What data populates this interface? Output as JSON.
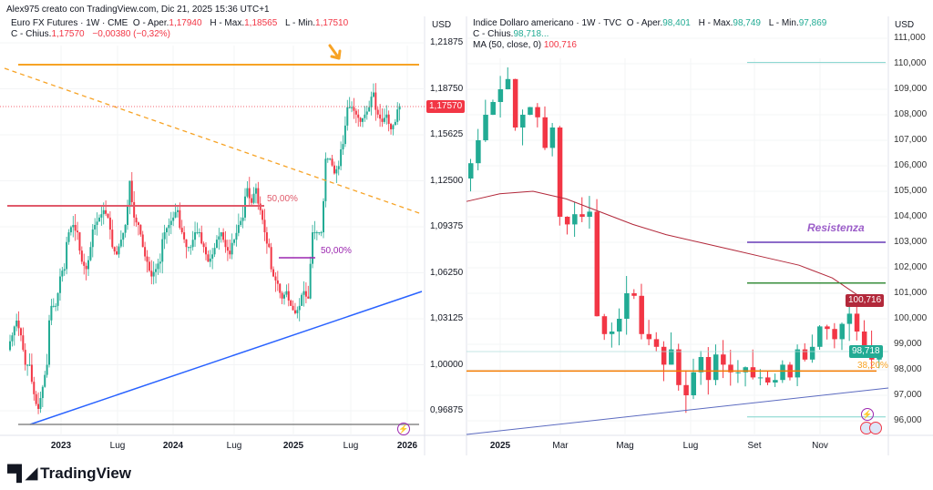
{
  "credit": "Alex975 creato con TradingView.com, Dic 21, 2025 15:36 UTC+1",
  "left": {
    "symbol": "Euro FX Futures · 1W · CME",
    "open_label": "O - Aper.",
    "open": "1,17940",
    "high_label": "H - Max.",
    "high": "1,18565",
    "low_label": "L - Min.",
    "low": "1,17510",
    "close_label": "C - Chius.",
    "close": "1,17570",
    "change": "−0,00380 (−0,32%)",
    "currency": "USD",
    "last_price": "1,17570",
    "y_ticks": [
      "1,21875",
      "1,18750",
      "1,15625",
      "1,12500",
      "1,09375",
      "1,06250",
      "1,03125",
      "1,00000",
      "0,96875"
    ],
    "x_ticks": [
      {
        "t": "2023",
        "bold": true
      },
      {
        "t": "Lug",
        "bold": false
      },
      {
        "t": "2024",
        "bold": true
      },
      {
        "t": "Lug",
        "bold": false
      },
      {
        "t": "2025",
        "bold": true
      },
      {
        "t": "Lug",
        "bold": false
      },
      {
        "t": "2026",
        "bold": true
      }
    ],
    "fib_label_1": "50,00%",
    "fib_label_2": "50,00%"
  },
  "right": {
    "symbol": "Indice Dollaro americano · 1W · TVC",
    "open_label": "O - Aper.",
    "open": "98,401",
    "high_label": "H - Max.",
    "high": "98,749",
    "low_label": "L - Min.",
    "low": "97,869",
    "close_label": "C - Chius.",
    "close": "98,718...",
    "ma_label": "MA (50, close, 0)",
    "ma_value": "100,716",
    "currency": "USD",
    "last_price": "98,718",
    "ma_tag": "100,716",
    "y_ticks": [
      "111,000",
      "110,000",
      "109,000",
      "108,000",
      "107,000",
      "106,000",
      "105,000",
      "104,000",
      "103,000",
      "102,000",
      "101,000",
      "100,000",
      "99,000",
      "98,000",
      "97,000",
      "96,000"
    ],
    "x_ticks": [
      {
        "t": "2025",
        "bold": true
      },
      {
        "t": "Mar",
        "bold": false
      },
      {
        "t": "Mag",
        "bold": false
      },
      {
        "t": "Lug",
        "bold": false
      },
      {
        "t": "Set",
        "bold": false
      },
      {
        "t": "Nov",
        "bold": false
      }
    ],
    "resistance_label": "Resistenza",
    "fib_label": "38,20%"
  },
  "brand": "TradingView",
  "colors": {
    "up": "#22ab94",
    "down": "#f23645",
    "orange": "#f7a325",
    "blue": "#2962ff",
    "purple": "#9c27b0",
    "ma": "#b2283a",
    "green_line": "#388e3c"
  },
  "chart_data": [
    {
      "type": "candlestick",
      "title": "Euro FX Futures · 1W · CME",
      "ylabel": "USD",
      "ylim": [
        0.96875,
        1.21875
      ],
      "x_range": [
        "2022-07",
        "2025-12"
      ],
      "closes_biweekly": [
        1.02,
        1.03,
        1.02,
        1.0,
        1.0,
        0.98,
        0.97,
        0.985,
        1.0,
        1.04,
        1.04,
        1.06,
        1.065,
        1.09,
        1.095,
        1.09,
        1.07,
        1.065,
        1.08,
        1.095,
        1.1,
        1.105,
        1.1,
        1.08,
        1.075,
        1.085,
        1.095,
        1.125,
        1.1,
        1.095,
        1.08,
        1.07,
        1.06,
        1.065,
        1.07,
        1.09,
        1.095,
        1.1,
        1.105,
        1.09,
        1.08,
        1.08,
        1.09,
        1.09,
        1.08,
        1.07,
        1.075,
        1.085,
        1.09,
        1.08,
        1.075,
        1.085,
        1.095,
        1.1,
        1.12,
        1.11,
        1.12,
        1.105,
        1.09,
        1.08,
        1.06,
        1.055,
        1.045,
        1.05,
        1.04,
        1.035,
        1.04,
        1.05,
        1.045,
        1.09,
        1.09,
        1.09,
        1.14,
        1.14,
        1.13,
        1.135,
        1.15,
        1.175,
        1.175,
        1.17,
        1.165,
        1.17,
        1.175,
        1.185,
        1.17,
        1.165,
        1.17,
        1.16,
        1.165,
        1.1757
      ],
      "levels": {
        "resistance": 1.204,
        "fib_50_a": 1.1063,
        "fib_50_b": 1.071
      }
    },
    {
      "type": "candlestick",
      "title": "Indice Dollaro americano · 1W · TVC",
      "ylabel": "USD",
      "ylim": [
        96.0,
        111.0
      ],
      "x_range": [
        "2024-12",
        "2025-12"
      ],
      "closes_weekly": [
        106.1,
        107.0,
        108.0,
        108.5,
        109.0,
        109.4,
        107.5,
        108.0,
        108.3,
        107.9,
        106.7,
        107.5,
        104.0,
        103.7,
        104.1,
        104.0,
        104.2,
        100.1,
        99.4,
        99.5,
        100.0,
        101.0,
        100.9,
        99.4,
        99.2,
        98.9,
        98.2,
        98.8,
        97.4,
        97.0,
        97.9,
        98.5,
        97.6,
        98.6,
        98.2,
        97.9,
        97.9,
        98.1,
        97.7,
        97.7,
        97.5,
        97.6,
        98.2,
        97.7,
        98.8,
        98.4,
        98.9,
        99.7,
        99.6,
        99.2,
        99.8,
        100.2,
        99.5,
        98.9,
        98.4,
        98.718
      ],
      "ma50": [
        104.6,
        104.9,
        105.0,
        104.7,
        104.2,
        103.7,
        103.3,
        103.0,
        102.7,
        102.4,
        102.1,
        101.6,
        100.716
      ],
      "levels": {
        "resistance": 103.0,
        "green": 101.4,
        "fib_38_2": 97.95,
        "high_band": 110.05,
        "low_band": 96.15
      }
    }
  ]
}
